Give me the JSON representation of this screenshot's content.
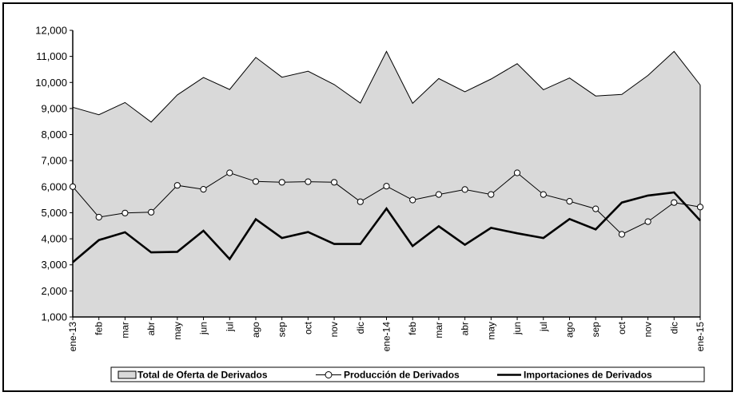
{
  "chart_data": {
    "type": "line",
    "categories": [
      "ene-13",
      "feb",
      "mar",
      "abr",
      "may",
      "jun",
      "jul",
      "ago",
      "sep",
      "oct",
      "nov",
      "dic",
      "ene-14",
      "feb",
      "mar",
      "abr",
      "may",
      "jun",
      "jul",
      "ago",
      "sep",
      "oct",
      "nov",
      "dic",
      "ene-15"
    ],
    "series": [
      {
        "name": "Total de Oferta de Derivados",
        "style": "area",
        "color": "#d9d9d9",
        "values": [
          9050,
          8760,
          9230,
          8480,
          9520,
          10190,
          9730,
          10960,
          10200,
          10430,
          9920,
          9210,
          11190,
          9200,
          10150,
          9640,
          10130,
          10720,
          9720,
          10170,
          9480,
          9540,
          10270,
          11190,
          9900
        ]
      },
      {
        "name": "Producción de Derivados",
        "style": "line-markers",
        "color": "#000000",
        "values": [
          6000,
          4830,
          4990,
          5020,
          6050,
          5900,
          6530,
          6200,
          6170,
          6190,
          6170,
          5420,
          6020,
          5490,
          5700,
          5890,
          5700,
          6530,
          5700,
          5440,
          5150,
          4170,
          4660,
          5390,
          5220
        ]
      },
      {
        "name": "Importaciones de Derivados",
        "style": "line-thick",
        "color": "#000000",
        "values": [
          3100,
          3950,
          4250,
          3480,
          3500,
          4310,
          3220,
          4750,
          4030,
          4260,
          3800,
          3800,
          5160,
          3720,
          4480,
          3770,
          4420,
          4210,
          4030,
          4760,
          4360,
          5390,
          5660,
          5780,
          4700
        ]
      }
    ],
    "ylim": [
      1000,
      12000
    ],
    "yticks": [
      1000,
      2000,
      3000,
      4000,
      5000,
      6000,
      7000,
      8000,
      9000,
      10000,
      11000,
      12000
    ],
    "ytick_labels": [
      "1,000",
      "2,000",
      "3,000",
      "4,000",
      "5,000",
      "6,000",
      "7,000",
      "8,000",
      "9,000",
      "10,000",
      "11,000",
      "12,000"
    ],
    "grid": false,
    "legend_position": "bottom",
    "title": "",
    "xlabel": "",
    "ylabel": ""
  }
}
